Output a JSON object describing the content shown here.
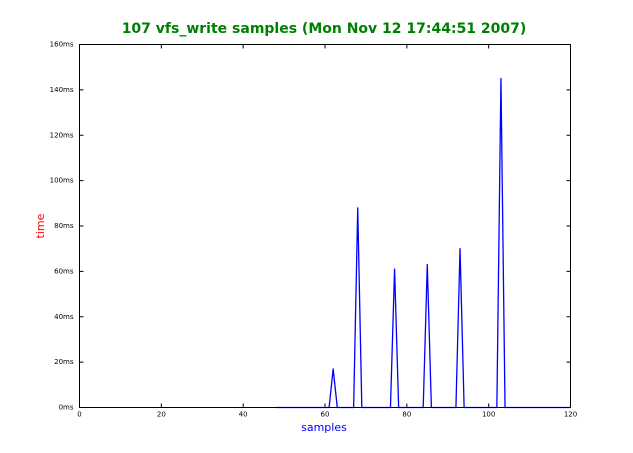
{
  "chart_data": {
    "type": "line",
    "title": "107 vfs_write samples (Mon Nov 12 17:44:51 2007)",
    "x_label": "samples",
    "y_label": "time",
    "x": [
      48,
      49,
      50,
      51,
      52,
      53,
      54,
      55,
      56,
      57,
      58,
      59,
      60,
      61,
      62,
      63,
      64,
      65,
      66,
      67,
      68,
      69,
      70,
      71,
      72,
      73,
      74,
      75,
      76,
      77,
      78,
      79,
      80,
      81,
      82,
      83,
      84,
      85,
      86,
      87,
      88,
      89,
      90,
      91,
      92,
      93,
      94,
      95,
      96,
      97,
      98,
      99,
      100,
      101,
      102,
      103,
      104,
      105,
      106,
      107,
      108,
      109,
      110,
      111,
      112,
      113,
      114,
      115,
      116,
      117,
      118,
      119,
      120
    ],
    "series": [
      {
        "color": "#0000ff",
        "values": [
          0,
          0,
          0,
          0,
          0,
          0,
          0,
          0,
          0,
          0,
          0,
          0,
          0,
          0,
          17,
          0,
          0,
          0,
          0,
          0,
          88,
          0,
          0,
          0,
          0,
          0,
          0,
          0,
          0,
          61,
          0,
          0,
          0,
          0,
          0,
          0,
          0,
          63,
          0,
          0,
          0,
          0,
          0,
          0,
          0,
          70,
          0,
          0,
          0,
          0,
          0,
          0,
          0,
          0,
          0,
          145,
          0,
          0,
          0,
          0,
          0,
          0,
          0,
          0,
          0,
          0,
          0,
          0,
          0,
          0,
          0,
          0,
          0
        ]
      }
    ],
    "xlim": [
      0,
      120
    ],
    "ylim": [
      0,
      160
    ],
    "xticks": [
      0,
      20,
      40,
      60,
      80,
      100,
      120
    ],
    "yticks": [
      {
        "value": 0,
        "label": "0ms"
      },
      {
        "value": 20,
        "label": "20ms"
      },
      {
        "value": 40,
        "label": "40ms"
      },
      {
        "value": 60,
        "label": "60ms"
      },
      {
        "value": 80,
        "label": "80ms"
      },
      {
        "value": 100,
        "label": "100ms"
      },
      {
        "value": 120,
        "label": "120ms"
      },
      {
        "value": 140,
        "label": "140ms"
      },
      {
        "value": 160,
        "label": "160ms"
      }
    ],
    "grid": false,
    "title_color": "#008000",
    "x_label_color": "#0000ff",
    "y_label_color": "#ff0000"
  }
}
